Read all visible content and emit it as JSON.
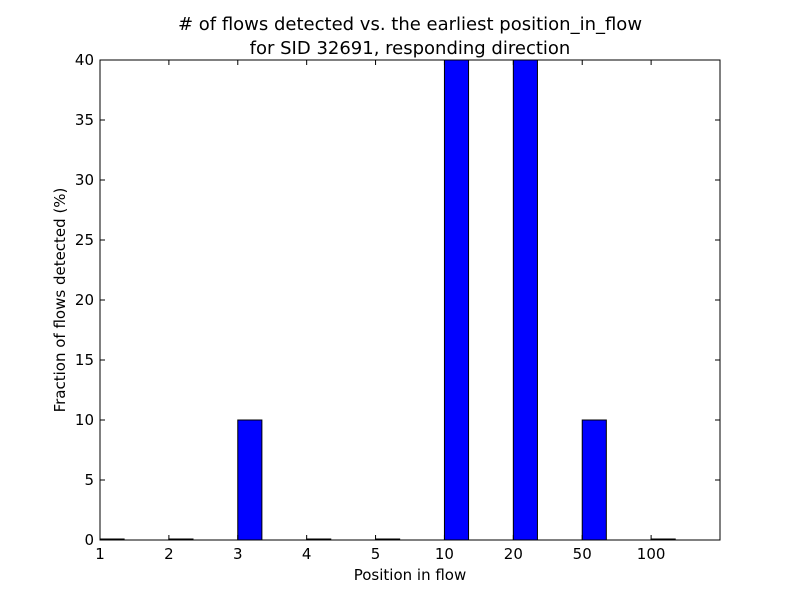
{
  "chart_data": {
    "type": "bar",
    "title": [
      "# of flows detected vs. the earliest position_in_flow",
      "for SID 32691, responding direction"
    ],
    "xlabel": "Position in flow",
    "ylabel": "Fraction of flows detected (%)",
    "categories": [
      "1",
      "2",
      "3",
      "4",
      "5",
      "10",
      "20",
      "50",
      "100"
    ],
    "values": [
      0,
      0,
      10,
      0,
      0,
      40,
      40,
      10,
      0
    ],
    "ylim": [
      0,
      40
    ],
    "yticks": [
      0,
      5,
      10,
      15,
      20,
      25,
      30,
      35,
      40
    ],
    "bar_color": "#0000ff",
    "grid": false,
    "legend": "none"
  }
}
